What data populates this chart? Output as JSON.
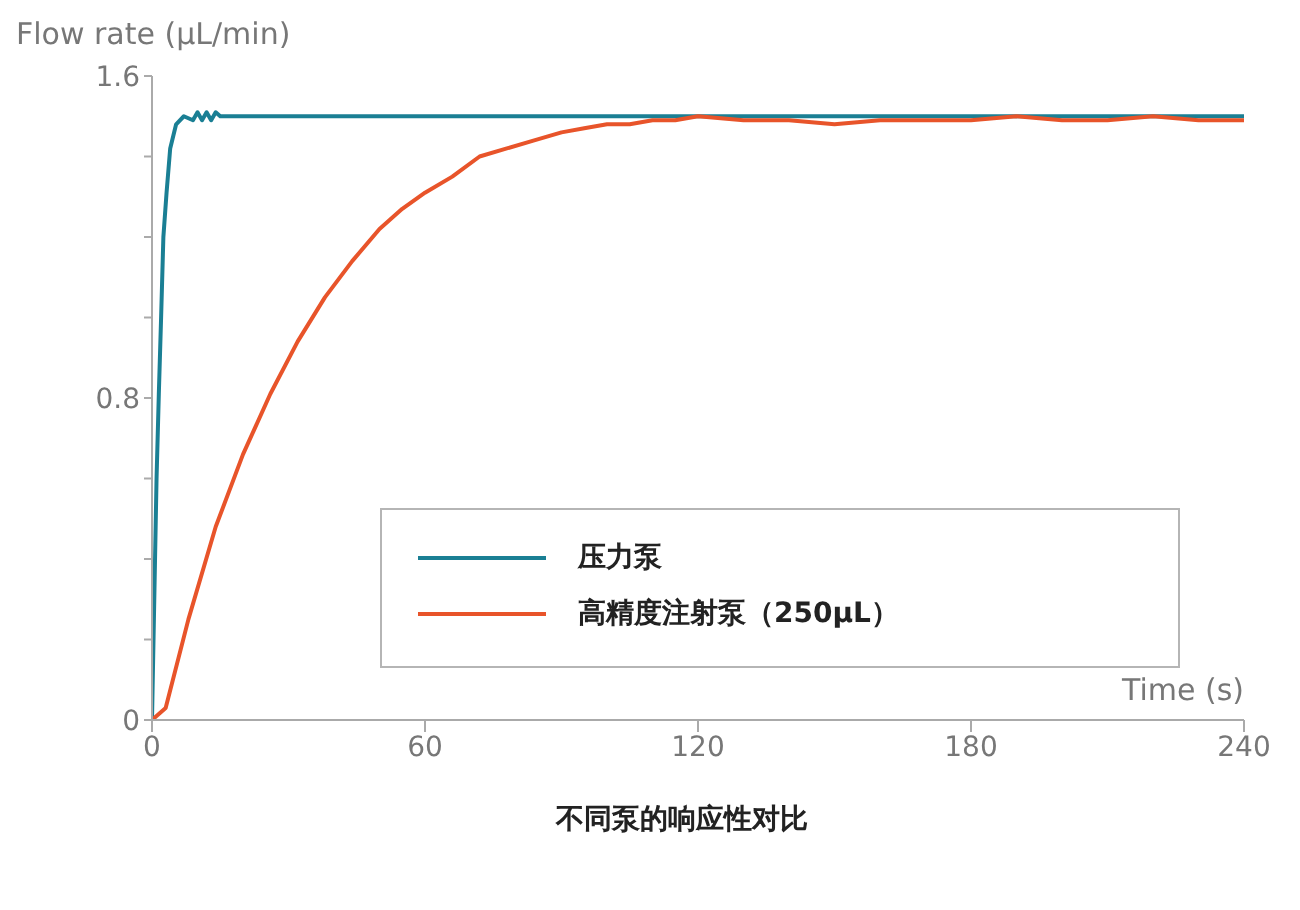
{
  "chart_data": {
    "type": "line",
    "ylabel": "Flow rate (μL/min)",
    "xlabel": "Time (s)",
    "annotations": [
      "不同泵的响应性对比"
    ],
    "xlim": [
      0,
      240
    ],
    "xticks": [
      0,
      60,
      120,
      180,
      240
    ],
    "ylim": [
      0,
      1.6
    ],
    "yticks": [
      0,
      {
        "value": 0.2,
        "label": null
      },
      {
        "value": 0.4,
        "label": null
      },
      {
        "value": 0.6,
        "label": null
      },
      0.8,
      {
        "value": 1.0,
        "label": null
      },
      {
        "value": 1.2,
        "label": null
      },
      {
        "value": 1.4,
        "label": null
      },
      1.6
    ],
    "grid": false,
    "legend": "bottom right",
    "marker": "none",
    "line_style": "solid",
    "series": [
      {
        "name": "压力泵",
        "color": "#1a7f94",
        "x": [
          0,
          0.5,
          1,
          1.5,
          2,
          2.5,
          3.2,
          4,
          5.3,
          7,
          9,
          10,
          11,
          12,
          13,
          14,
          15,
          17,
          30,
          60,
          120,
          180,
          240
        ],
        "values": [
          0,
          0.3,
          0.6,
          0.81,
          1.0,
          1.2,
          1.31,
          1.42,
          1.48,
          1.5,
          1.49,
          1.51,
          1.49,
          1.51,
          1.49,
          1.51,
          1.5,
          1.5,
          1.5,
          1.5,
          1.5,
          1.5,
          1.5
        ]
      },
      {
        "name": "高精度注射泵（250μL）",
        "color": "#e8542a",
        "x": [
          0,
          1,
          3,
          8,
          14,
          20,
          26,
          32,
          38,
          44,
          50,
          55,
          60,
          66,
          72,
          78,
          84,
          90,
          95,
          100,
          105,
          110,
          115,
          120,
          130,
          140,
          150,
          160,
          170,
          180,
          190,
          200,
          210,
          220,
          230,
          240
        ],
        "values": [
          0,
          0.01,
          0.03,
          0.25,
          0.48,
          0.66,
          0.81,
          0.94,
          1.05,
          1.14,
          1.22,
          1.27,
          1.31,
          1.35,
          1.4,
          1.42,
          1.44,
          1.46,
          1.47,
          1.48,
          1.48,
          1.49,
          1.49,
          1.5,
          1.49,
          1.49,
          1.48,
          1.49,
          1.49,
          1.49,
          1.5,
          1.49,
          1.49,
          1.5,
          1.49,
          1.49
        ]
      }
    ]
  }
}
